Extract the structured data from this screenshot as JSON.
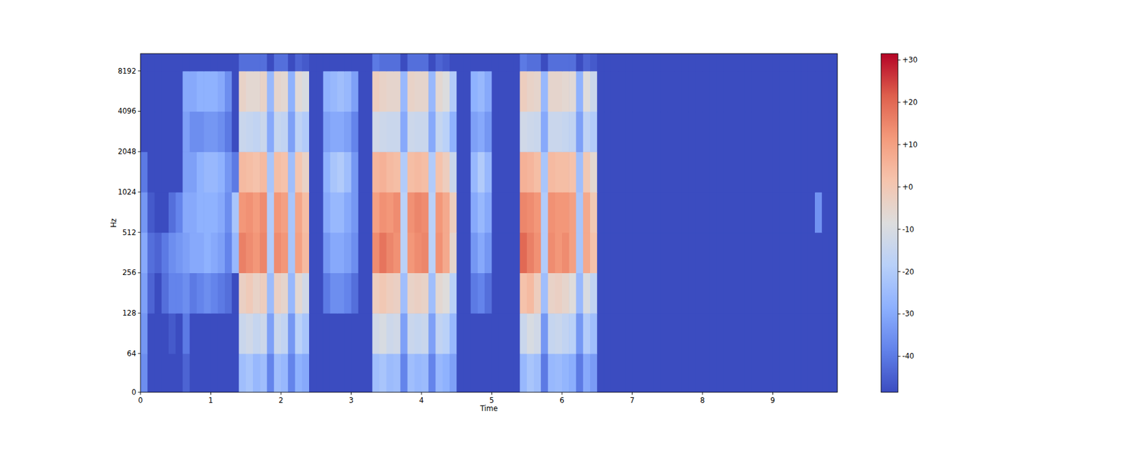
{
  "chart_data": {
    "type": "heatmap",
    "x_label": "Time",
    "y_label": "Hz",
    "xlim": [
      0,
      9.92
    ],
    "ylim": [
      0,
      11025
    ],
    "log": "y",
    "xticks": [
      0,
      1,
      2,
      3,
      4,
      5,
      6,
      7,
      8,
      9
    ],
    "yticks": [
      0,
      64,
      128,
      256,
      512,
      1024,
      2048,
      4096,
      8192
    ],
    "x_edges": [
      0,
      0.1,
      0.2,
      0.3,
      0.4,
      0.5,
      0.6,
      0.7,
      0.8,
      0.9,
      1.0,
      1.1,
      1.2,
      1.3,
      1.4,
      1.5,
      1.6,
      1.7,
      1.8,
      1.9,
      2.0,
      2.1,
      2.2,
      2.3,
      2.4,
      2.5,
      2.6,
      2.7,
      2.8,
      2.9,
      3.0,
      3.1,
      3.2,
      3.3,
      3.4,
      3.5,
      3.6,
      3.7,
      3.8,
      3.9,
      4.0,
      4.1,
      4.2,
      4.3,
      4.4,
      4.5,
      4.6,
      4.7,
      4.8,
      4.9,
      5.0,
      5.1,
      5.2,
      5.3,
      5.4,
      5.5,
      5.6,
      5.7,
      5.8,
      5.9,
      6.0,
      6.1,
      6.2,
      6.3,
      6.4,
      6.5,
      6.6,
      6.7,
      6.8,
      6.9,
      7.0,
      7.1,
      7.2,
      7.3,
      7.4,
      7.5,
      7.6,
      7.7,
      7.8,
      7.9,
      8.0,
      8.1,
      8.2,
      8.3,
      8.4,
      8.5,
      8.6,
      8.7,
      8.8,
      8.9,
      9.0,
      9.1,
      9.2,
      9.3,
      9.4,
      9.5,
      9.6,
      9.7,
      9.8,
      9.9,
      9.92
    ],
    "y_edges": [
      0,
      64,
      128,
      256,
      512,
      1024,
      2048,
      4096,
      8192,
      11025
    ],
    "cells": [
      [
        -36,
        -48.5,
        -48.5,
        -48.5,
        -48.5,
        -48.5,
        -44,
        -48.5,
        -48.5,
        -48.5,
        -48.5,
        -48.5,
        -48.5,
        -48.5,
        -24,
        -22,
        -26,
        -24,
        -38,
        -24,
        -26,
        -38,
        -28,
        -30,
        -48.5,
        -48.5,
        -48.5,
        -48.5,
        -48.5,
        -48.5,
        -48.5,
        -48.5,
        -48.5,
        -24,
        -22,
        -25,
        -24,
        -38,
        -24,
        -26,
        -25,
        -38,
        -26,
        -28,
        -32,
        -48.5,
        -48.5,
        -48.5,
        -48.5,
        -48.5,
        -48.5,
        -48.5,
        -48.5,
        -48.5,
        -26,
        -22,
        -24,
        -40,
        -26,
        -25,
        -27,
        -29,
        -40,
        -30,
        -33,
        -48.5,
        -48.5,
        -48.5,
        -48.5,
        -48.5,
        -48.5,
        -48.5,
        -48.5,
        -48.5,
        -48.5,
        -48.5,
        -48.5,
        -48.5,
        -48.5,
        -48.5,
        -48.5,
        -48.5,
        -48.5,
        -48.5,
        -48.5,
        -48.5,
        -48.5,
        -48.5,
        -48.5,
        -48.5,
        -48.5,
        -48.5,
        -48.5,
        -48.5,
        -48.5,
        -48.5,
        -48.5,
        -48.5,
        -48.5,
        -48.5
      ],
      [
        -34,
        -48.5,
        -48.5,
        -48.5,
        -46,
        -48.5,
        -40,
        -48.5,
        -48.5,
        -48.5,
        -48.5,
        -48.5,
        -48.5,
        -48.5,
        -14,
        -12,
        -15,
        -13,
        -32,
        -14,
        -16,
        -34,
        -18,
        -22,
        -48.5,
        -48.5,
        -48.5,
        -48.5,
        -48.5,
        -48.5,
        -48.5,
        -48.5,
        -48.5,
        -12,
        -10,
        -13,
        -12,
        -32,
        -14,
        -15,
        -14,
        -32,
        -16,
        -18,
        -26,
        -48.5,
        -48.5,
        -48.5,
        -48.5,
        -48.5,
        -48.5,
        -48.5,
        -48.5,
        -48.5,
        -14,
        -10,
        -12,
        -34,
        -15,
        -14,
        -16,
        -18,
        -34,
        -20,
        -24,
        -48.5,
        -48.5,
        -48.5,
        -48.5,
        -48.5,
        -48.5,
        -48.5,
        -48.5,
        -48.5,
        -48.5,
        -48.5,
        -48.5,
        -48.5,
        -48.5,
        -48.5,
        -48.5,
        -48.5,
        -48.5,
        -48.5,
        -48.5,
        -48.5,
        -48.5,
        -48.5,
        -48.5,
        -48.5,
        -48.5,
        -48.5,
        -48.5,
        -48.5,
        -48.5,
        -48.5,
        -48.5,
        -48.5,
        -48.5,
        -48.5
      ],
      [
        -32,
        -44,
        -48.5,
        -42,
        -38,
        -38,
        -36,
        -40,
        -38,
        -36,
        -38,
        -40,
        -42,
        -48.5,
        -3,
        -1,
        -4,
        -2,
        -25,
        -3,
        -5,
        -26,
        -6,
        -12,
        -48.5,
        -48.5,
        -40,
        -36,
        -36,
        -38,
        -42,
        -48.5,
        -48.5,
        -2,
        0,
        -2,
        -3,
        -24,
        -4,
        -3,
        -4,
        -24,
        -6,
        -8,
        -18,
        -48.5,
        -48.5,
        -40,
        -38,
        -42,
        -48.5,
        -48.5,
        -48.5,
        -48.5,
        2,
        4,
        -2,
        -24,
        -4,
        -3,
        -5,
        -8,
        -26,
        -10,
        -16,
        -48.5,
        -48.5,
        -48.5,
        -48.5,
        -48.5,
        -48.5,
        -48.5,
        -48.5,
        -48.5,
        -48.5,
        -48.5,
        -48.5,
        -48.5,
        -48.5,
        -48.5,
        -48.5,
        -48.5,
        -48.5,
        -48.5,
        -48.5,
        -48.5,
        -48.5,
        -48.5,
        -48.5,
        -48.5,
        -48.5,
        -48.5,
        -48.5,
        -48.5,
        -48.5,
        -48.5,
        -48.5,
        -48.5,
        -48.5,
        -48.5
      ],
      [
        -30,
        -42,
        -44,
        -40,
        -36,
        -34,
        -32,
        -30,
        -30,
        -28,
        -30,
        -32,
        -38,
        -26,
        16,
        14,
        12,
        15,
        -20,
        14,
        12,
        -22,
        10,
        4,
        -48.5,
        -48.5,
        -34,
        -30,
        -30,
        -32,
        -36,
        -48.5,
        -48.5,
        14,
        18,
        15,
        13,
        -18,
        12,
        14,
        15,
        -18,
        13,
        8,
        -5,
        -48.5,
        -48.5,
        -34,
        -30,
        -34,
        -48.5,
        -48.5,
        -48.5,
        -48.5,
        20,
        16,
        13,
        -20,
        14,
        12,
        14,
        10,
        -22,
        8,
        2,
        -48.5,
        -48.5,
        -48.5,
        -48.5,
        -48.5,
        -48.5,
        -48.5,
        -48.5,
        -48.5,
        -48.5,
        -48.5,
        -48.5,
        -48.5,
        -48.5,
        -48.5,
        -48.5,
        -48.5,
        -48.5,
        -48.5,
        -48.5,
        -48.5,
        -48.5,
        -48.5,
        -48.5,
        -48.5,
        -48.5,
        -48.5,
        -48.5,
        -48.5,
        -48.5,
        -48.5,
        -48.5,
        -48.5,
        -48.5,
        -48.5
      ],
      [
        -34,
        -46,
        -48.5,
        -48.5,
        -42,
        -38,
        -30,
        -30,
        -28,
        -28,
        -28,
        -30,
        -36,
        -22,
        12,
        13,
        11,
        14,
        -20,
        12,
        10,
        -22,
        9,
        3,
        -48.5,
        -48.5,
        -30,
        -26,
        -26,
        -30,
        -34,
        -48.5,
        -48.5,
        10,
        13,
        12,
        14,
        -18,
        13,
        15,
        14,
        -18,
        12,
        8,
        -2,
        -48.5,
        -48.5,
        -30,
        -26,
        -30,
        -48.5,
        -48.5,
        -48.5,
        -48.5,
        15,
        14,
        12,
        -20,
        13,
        12,
        12,
        10,
        -22,
        8,
        0,
        -48.5,
        -48.5,
        -48.5,
        -48.5,
        -48.5,
        -48.5,
        -48.5,
        -48.5,
        -48.5,
        -48.5,
        -48.5,
        -48.5,
        -48.5,
        -48.5,
        -48.5,
        -48.5,
        -48.5,
        -48.5,
        -48.5,
        -48.5,
        -48.5,
        -48.5,
        -48.5,
        -48.5,
        -48.5,
        -48.5,
        -48.5,
        -48.5,
        -48.5,
        -48.5,
        -48.5,
        -35,
        -48.5,
        -48.5,
        -48.5
      ],
      [
        -40,
        -48.5,
        -48.5,
        -48.5,
        -48.5,
        -48.5,
        -32,
        -32,
        -28,
        -26,
        -26,
        -28,
        -34,
        -40,
        4,
        3,
        2,
        4,
        -22,
        3,
        2,
        -24,
        1,
        -4,
        -48.5,
        -48.5,
        -28,
        -22,
        -20,
        -24,
        -34,
        -48.5,
        -48.5,
        5,
        6,
        4,
        3,
        -20,
        3,
        4,
        3,
        -20,
        2,
        -2,
        -14,
        -48.5,
        -48.5,
        -26,
        -20,
        -26,
        -48.5,
        -48.5,
        -48.5,
        -48.5,
        6,
        5,
        3,
        -22,
        4,
        3,
        3,
        2,
        -24,
        0,
        -6,
        -48.5,
        -48.5,
        -48.5,
        -48.5,
        -48.5,
        -48.5,
        -48.5,
        -48.5,
        -48.5,
        -48.5,
        -48.5,
        -48.5,
        -48.5,
        -48.5,
        -48.5,
        -48.5,
        -48.5,
        -48.5,
        -48.5,
        -48.5,
        -48.5,
        -48.5,
        -48.5,
        -48.5,
        -48.5,
        -48.5,
        -48.5,
        -48.5,
        -48.5,
        -48.5,
        -48.5,
        -48.5,
        -48.5,
        -48.5,
        -48.5
      ],
      [
        -48.5,
        -48.5,
        -48.5,
        -48.5,
        -48.5,
        -48.5,
        -32,
        -36,
        -36,
        -34,
        -34,
        -36,
        -40,
        -48.5,
        -14,
        -15,
        -16,
        -14,
        -30,
        -15,
        -16,
        -32,
        -17,
        -20,
        -48.5,
        -48.5,
        -32,
        -30,
        -30,
        -32,
        -38,
        -48.5,
        -48.5,
        -12,
        -13,
        -14,
        -14,
        -30,
        -13,
        -14,
        -14,
        -30,
        -15,
        -18,
        -28,
        -48.5,
        -48.5,
        -32,
        -30,
        -34,
        -48.5,
        -48.5,
        -48.5,
        -48.5,
        -12,
        -13,
        -14,
        -30,
        -14,
        -14,
        -15,
        -16,
        -32,
        -17,
        -20,
        -48.5,
        -48.5,
        -48.5,
        -48.5,
        -48.5,
        -48.5,
        -48.5,
        -48.5,
        -48.5,
        -48.5,
        -48.5,
        -48.5,
        -48.5,
        -48.5,
        -48.5,
        -48.5,
        -48.5,
        -48.5,
        -48.5,
        -48.5,
        -48.5,
        -48.5,
        -48.5,
        -48.5,
        -48.5,
        -48.5,
        -48.5,
        -48.5,
        -48.5,
        -48.5,
        -48.5,
        -48.5,
        -48.5,
        -48.5,
        -48.5
      ],
      [
        -48.5,
        -48.5,
        -48.5,
        -48.5,
        -48.5,
        -48.5,
        -30,
        -30,
        -28,
        -28,
        -28,
        -30,
        -36,
        -48.5,
        -4,
        -6,
        -6,
        -4,
        -26,
        -5,
        -6,
        -28,
        -7,
        -10,
        -48.5,
        -48.5,
        -28,
        -26,
        -24,
        -26,
        -32,
        -48.5,
        -48.5,
        -2,
        -4,
        -5,
        -5,
        -26,
        -4,
        -5,
        -5,
        -26,
        -6,
        -9,
        -20,
        -48.5,
        -48.5,
        -28,
        -26,
        -30,
        -48.5,
        -48.5,
        -48.5,
        -48.5,
        -2,
        -4,
        -5,
        -26,
        -5,
        -5,
        -6,
        -7,
        -28,
        -8,
        -14,
        -48.5,
        -48.5,
        -48.5,
        -48.5,
        -48.5,
        -48.5,
        -48.5,
        -48.5,
        -48.5,
        -48.5,
        -48.5,
        -48.5,
        -48.5,
        -48.5,
        -48.5,
        -48.5,
        -48.5,
        -48.5,
        -48.5,
        -48.5,
        -48.5,
        -48.5,
        -48.5,
        -48.5,
        -48.5,
        -48.5,
        -48.5,
        -48.5,
        -48.5,
        -48.5,
        -48.5,
        -48.5,
        -48.5,
        -48.5,
        -48.5
      ],
      [
        -48.5,
        -48.5,
        -48.5,
        -48.5,
        -48.5,
        -48.5,
        -48.5,
        -48.5,
        -48.5,
        -48.5,
        -48.5,
        -48.5,
        -48.5,
        -48.5,
        -42,
        -42,
        -42,
        -42,
        -48.5,
        -42,
        -42,
        -48.5,
        -44,
        -46,
        -48.5,
        -48.5,
        -48.5,
        -48.5,
        -48.5,
        -48.5,
        -48.5,
        -48.5,
        -48.5,
        -40,
        -42,
        -42,
        -42,
        -48.5,
        -42,
        -42,
        -42,
        -48.5,
        -44,
        -46,
        -48.5,
        -48.5,
        -48.5,
        -48.5,
        -48.5,
        -48.5,
        -48.5,
        -48.5,
        -48.5,
        -48.5,
        -40,
        -42,
        -42,
        -48.5,
        -42,
        -42,
        -42,
        -42,
        -48.5,
        -44,
        -46,
        -48.5,
        -48.5,
        -48.5,
        -48.5,
        -48.5,
        -48.5,
        -48.5,
        -48.5,
        -48.5,
        -48.5,
        -48.5,
        -48.5,
        -48.5,
        -48.5,
        -48.5,
        -48.5,
        -48.5,
        -48.5,
        -48.5,
        -48.5,
        -48.5,
        -48.5,
        -48.5,
        -48.5,
        -48.5,
        -48.5,
        -48.5,
        -48.5,
        -48.5,
        -48.5,
        -48.5,
        -48.5,
        -48.5,
        -48.5,
        -48.5
      ]
    ],
    "colorbar": {
      "range": [
        -48.5,
        31.5
      ],
      "ticks": [
        {
          "value": 30,
          "label": "+30"
        },
        {
          "value": 20,
          "label": "+20"
        },
        {
          "value": 10,
          "label": "+10"
        },
        {
          "value": 0,
          "label": "+0"
        },
        -10,
        -20,
        -30,
        -40
      ]
    }
  }
}
